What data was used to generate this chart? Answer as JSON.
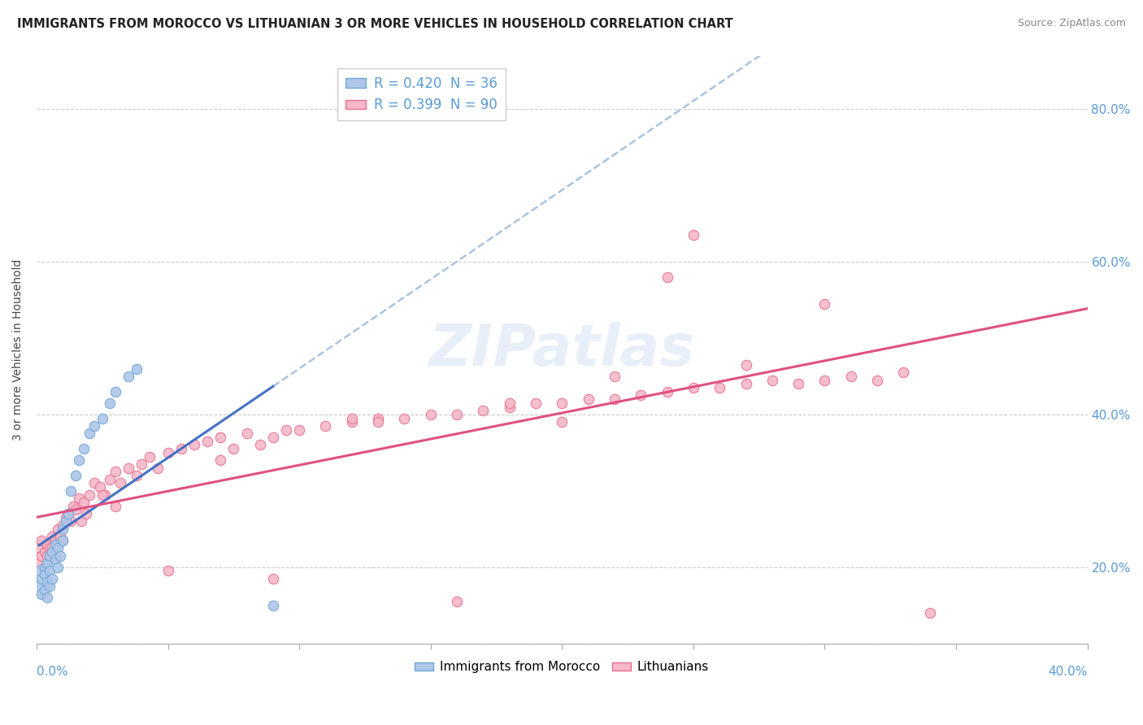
{
  "title": "IMMIGRANTS FROM MOROCCO VS LITHUANIAN 3 OR MORE VEHICLES IN HOUSEHOLD CORRELATION CHART",
  "source": "Source: ZipAtlas.com",
  "ylabel": "3 or more Vehicles in Household",
  "legend_blue_label": "R = 0.420  N = 36",
  "legend_pink_label": "R = 0.399  N = 90",
  "legend_blue_series": "Immigrants from Morocco",
  "legend_pink_series": "Lithuanians",
  "blue_dot_fill": "#aec6e8",
  "blue_dot_edge": "#6fa8d6",
  "pink_dot_fill": "#f5b8c8",
  "pink_dot_edge": "#e87090",
  "blue_line_color": "#4472c4",
  "pink_line_color": "#e05080",
  "dashed_line_color": "#aac4de",
  "ytick_labels": [
    "",
    "20.0%",
    "40.0%",
    "60.0%",
    "80.0%"
  ],
  "ytick_vals": [
    0.1,
    0.2,
    0.4,
    0.6,
    0.8
  ],
  "xlim": [
    0.0,
    0.4
  ],
  "ylim": [
    0.1,
    0.87
  ],
  "blue_R": 0.42,
  "blue_N": 36,
  "pink_R": 0.399,
  "pink_N": 90,
  "watermark": "ZIPatlas",
  "blue_scatter_x": [
    0.001,
    0.001,
    0.002,
    0.002,
    0.003,
    0.003,
    0.003,
    0.004,
    0.004,
    0.004,
    0.005,
    0.005,
    0.005,
    0.006,
    0.006,
    0.007,
    0.007,
    0.008,
    0.008,
    0.009,
    0.01,
    0.01,
    0.011,
    0.012,
    0.013,
    0.015,
    0.016,
    0.018,
    0.02,
    0.022,
    0.025,
    0.028,
    0.03,
    0.035,
    0.038,
    0.09
  ],
  "blue_scatter_y": [
    0.195,
    0.175,
    0.185,
    0.165,
    0.2,
    0.17,
    0.19,
    0.18,
    0.205,
    0.16,
    0.195,
    0.175,
    0.215,
    0.185,
    0.22,
    0.21,
    0.23,
    0.2,
    0.225,
    0.215,
    0.235,
    0.25,
    0.26,
    0.27,
    0.3,
    0.32,
    0.34,
    0.355,
    0.375,
    0.385,
    0.395,
    0.415,
    0.43,
    0.45,
    0.46,
    0.15
  ],
  "pink_scatter_x": [
    0.001,
    0.001,
    0.002,
    0.002,
    0.003,
    0.003,
    0.004,
    0.004,
    0.005,
    0.005,
    0.006,
    0.006,
    0.007,
    0.007,
    0.008,
    0.008,
    0.009,
    0.01,
    0.01,
    0.011,
    0.012,
    0.013,
    0.014,
    0.015,
    0.016,
    0.017,
    0.018,
    0.019,
    0.02,
    0.022,
    0.024,
    0.026,
    0.028,
    0.03,
    0.032,
    0.035,
    0.038,
    0.04,
    0.043,
    0.046,
    0.05,
    0.055,
    0.06,
    0.065,
    0.07,
    0.075,
    0.08,
    0.085,
    0.09,
    0.095,
    0.1,
    0.11,
    0.12,
    0.13,
    0.14,
    0.15,
    0.16,
    0.17,
    0.18,
    0.19,
    0.2,
    0.21,
    0.22,
    0.23,
    0.24,
    0.25,
    0.26,
    0.27,
    0.28,
    0.29,
    0.3,
    0.31,
    0.32,
    0.33,
    0.05,
    0.13,
    0.2,
    0.25,
    0.3,
    0.34,
    0.025,
    0.07,
    0.12,
    0.18,
    0.22,
    0.27,
    0.03,
    0.09,
    0.16,
    0.24
  ],
  "pink_scatter_y": [
    0.225,
    0.205,
    0.215,
    0.235,
    0.2,
    0.22,
    0.23,
    0.215,
    0.225,
    0.21,
    0.24,
    0.225,
    0.235,
    0.22,
    0.23,
    0.25,
    0.24,
    0.255,
    0.235,
    0.265,
    0.27,
    0.26,
    0.28,
    0.275,
    0.29,
    0.26,
    0.285,
    0.27,
    0.295,
    0.31,
    0.305,
    0.295,
    0.315,
    0.325,
    0.31,
    0.33,
    0.32,
    0.335,
    0.345,
    0.33,
    0.35,
    0.355,
    0.36,
    0.365,
    0.37,
    0.355,
    0.375,
    0.36,
    0.37,
    0.38,
    0.38,
    0.385,
    0.39,
    0.395,
    0.395,
    0.4,
    0.4,
    0.405,
    0.41,
    0.415,
    0.415,
    0.42,
    0.42,
    0.425,
    0.43,
    0.435,
    0.435,
    0.44,
    0.445,
    0.44,
    0.445,
    0.45,
    0.445,
    0.455,
    0.195,
    0.39,
    0.39,
    0.635,
    0.545,
    0.14,
    0.295,
    0.34,
    0.395,
    0.415,
    0.45,
    0.465,
    0.28,
    0.185,
    0.155,
    0.58
  ]
}
